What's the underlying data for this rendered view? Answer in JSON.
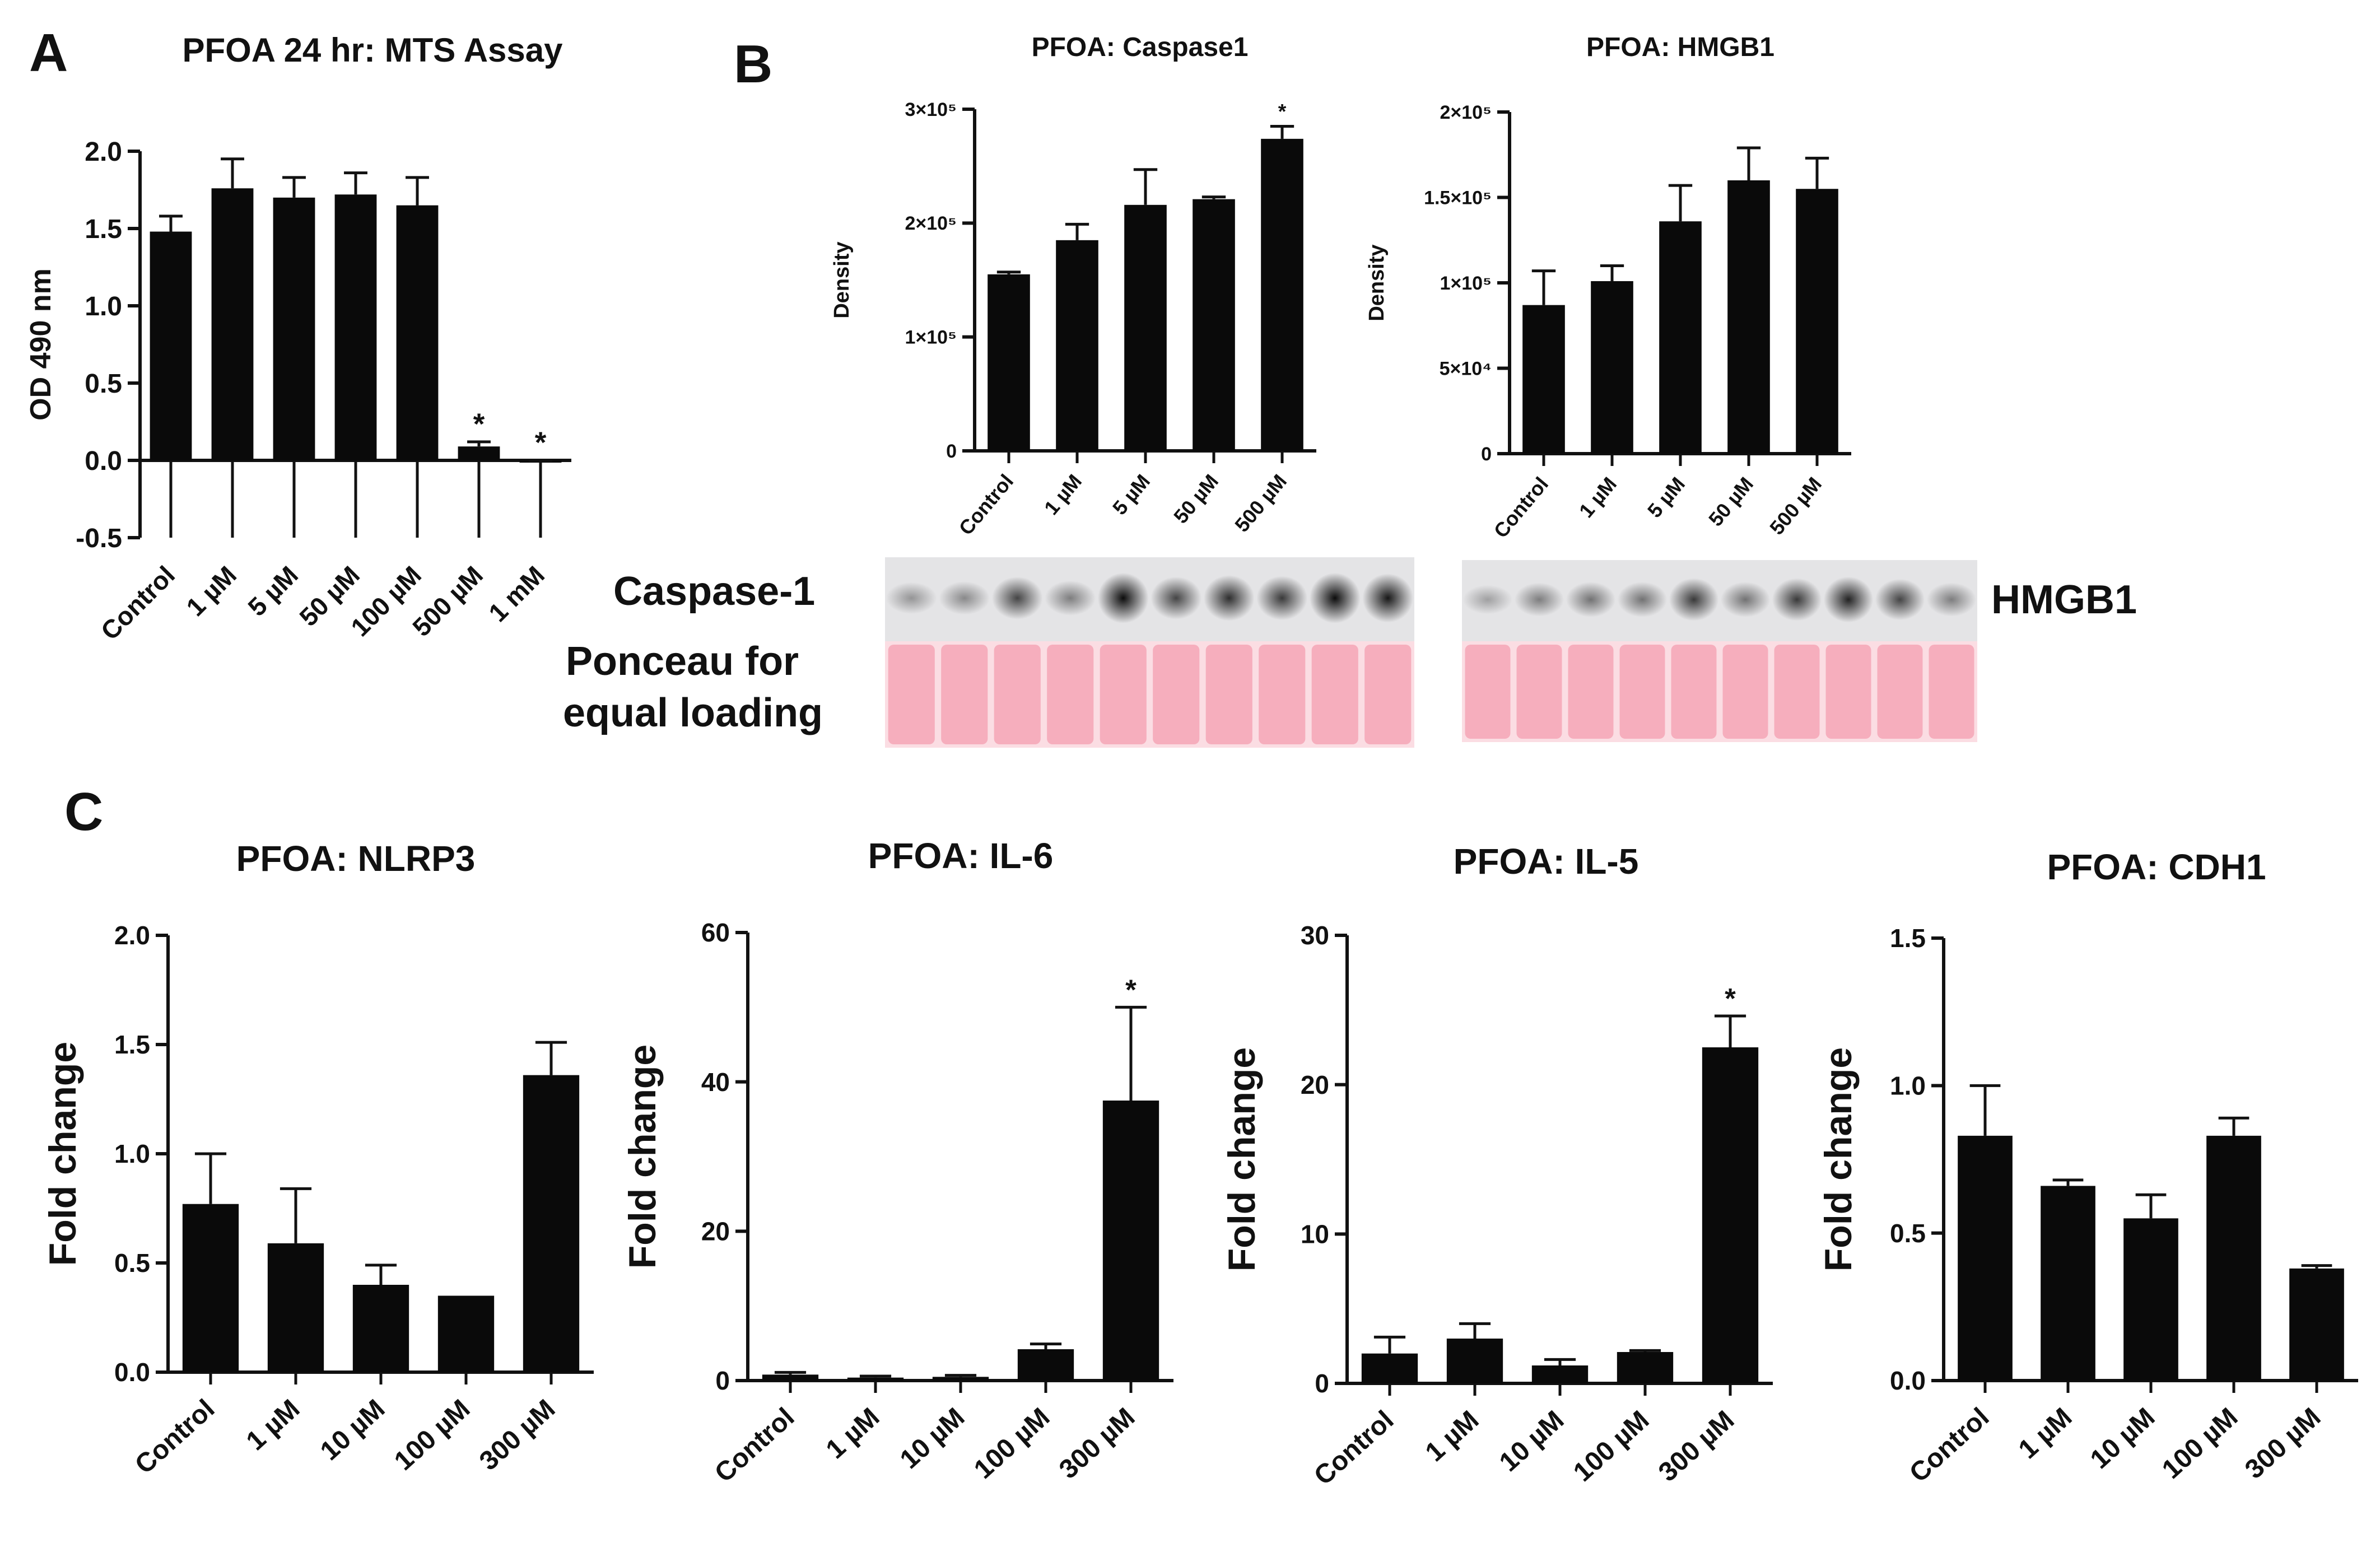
{
  "panel_letters": {
    "a": "A",
    "b": "B",
    "c": "C"
  },
  "blot": {
    "caspase_label": "Caspase-1",
    "ponceau_label_line1": "Ponceau for",
    "ponceau_label_line2": "equal loading",
    "hmgb1_label": "HMGB1",
    "lanes": 10,
    "caspase_band_intensity": [
      0.35,
      0.4,
      0.7,
      0.45,
      0.95,
      0.7,
      0.8,
      0.75,
      0.95,
      0.9
    ],
    "hmgb1_band_intensity": [
      0.3,
      0.45,
      0.5,
      0.5,
      0.75,
      0.5,
      0.75,
      0.85,
      0.7,
      0.45
    ],
    "ponceau_color": "#f4a6b6",
    "ponceau_light": "#fbdde3"
  },
  "chart_data": [
    {
      "id": "A",
      "type": "bar",
      "title": "PFOA 24 hr: MTS Assay",
      "xlabel": "",
      "ylabel": "OD 490 nm",
      "categories": [
        "Control",
        "1 µM",
        "5 µM",
        "50 µM",
        "100 µM",
        "500 µM",
        "1 mM"
      ],
      "values": [
        1.48,
        1.76,
        1.7,
        1.72,
        1.65,
        0.09,
        -0.01
      ],
      "errors": [
        0.1,
        0.19,
        0.13,
        0.14,
        0.18,
        0.03,
        0.01
      ],
      "significant": [
        false,
        false,
        false,
        false,
        false,
        true,
        true
      ],
      "ylim": [
        -0.5,
        2.0
      ],
      "yticks": [
        "-0.5",
        "0.0",
        "0.5",
        "1.0",
        "1.5",
        "2.0"
      ],
      "ytick_values": [
        -0.5,
        0.0,
        0.5,
        1.0,
        1.5,
        2.0
      ]
    },
    {
      "id": "B1",
      "type": "bar",
      "title": "PFOA: Caspase1",
      "xlabel": "",
      "ylabel": "Density",
      "categories": [
        "Control",
        "1 µM",
        "5 µM",
        "50 µM",
        "500 µM"
      ],
      "values": [
        155000,
        185000,
        216000,
        221000,
        274000
      ],
      "errors": [
        2000,
        14000,
        31000,
        2000,
        11000
      ],
      "significant": [
        false,
        false,
        false,
        false,
        true
      ],
      "ylim": [
        0,
        300000
      ],
      "yticks": [
        "0",
        "1×10⁵",
        "2×10⁵",
        "3×10⁵"
      ],
      "ytick_values": [
        0,
        100000,
        200000,
        300000
      ]
    },
    {
      "id": "B2",
      "type": "bar",
      "title": "PFOA: HMGB1",
      "xlabel": "",
      "ylabel": "Density",
      "categories": [
        "Control",
        "1 µM",
        "5 µM",
        "50 µM",
        "500 µM"
      ],
      "values": [
        87000,
        101000,
        136000,
        160000,
        155000
      ],
      "errors": [
        20000,
        9000,
        21000,
        19000,
        18000
      ],
      "significant": [
        false,
        false,
        false,
        false,
        false
      ],
      "ylim": [
        0,
        200000
      ],
      "yticks": [
        "0",
        "5×10⁴",
        "1×10⁵",
        "1.5×10⁵",
        "2×10⁵"
      ],
      "ytick_values": [
        0,
        50000,
        100000,
        150000,
        200000
      ]
    },
    {
      "id": "C1",
      "type": "bar",
      "title": "PFOA: NLRP3",
      "xlabel": "",
      "ylabel": "Fold change",
      "categories": [
        "Control",
        "1 µM",
        "10 µM",
        "100 µM",
        "300 µM"
      ],
      "values": [
        0.77,
        0.59,
        0.4,
        0.35,
        1.36
      ],
      "errors": [
        0.23,
        0.25,
        0.09,
        0.0,
        0.15
      ],
      "significant": [
        false,
        false,
        false,
        false,
        false
      ],
      "ylim": [
        0,
        2.0
      ],
      "yticks": [
        "0.0",
        "0.5",
        "1.0",
        "1.5",
        "2.0"
      ],
      "ytick_values": [
        0,
        0.5,
        1.0,
        1.5,
        2.0
      ]
    },
    {
      "id": "C2",
      "type": "bar",
      "title": "PFOA: IL-6",
      "xlabel": "",
      "ylabel": "Fold change",
      "categories": [
        "Control",
        "1 µM",
        "10 µM",
        "100 µM",
        "300 µM"
      ],
      "values": [
        0.8,
        0.4,
        0.5,
        4.2,
        37.5
      ],
      "errors": [
        0.3,
        0.2,
        0.2,
        0.7,
        12.5
      ],
      "significant": [
        false,
        false,
        false,
        false,
        true
      ],
      "ylim": [
        0,
        60
      ],
      "yticks": [
        "0",
        "20",
        "40",
        "60"
      ],
      "ytick_values": [
        0,
        20,
        40,
        60
      ]
    },
    {
      "id": "C3",
      "type": "bar",
      "title": "PFOA: IL-5",
      "xlabel": "",
      "ylabel": "Fold change",
      "categories": [
        "Control",
        "1 µM",
        "10 µM",
        "100 µM",
        "300 µM"
      ],
      "values": [
        2.0,
        3.0,
        1.2,
        2.1,
        22.5
      ],
      "errors": [
        1.1,
        1.0,
        0.4,
        0.1,
        2.1
      ],
      "significant": [
        false,
        false,
        false,
        false,
        true
      ],
      "ylim": [
        0,
        30
      ],
      "yticks": [
        "0",
        "10",
        "20",
        "30"
      ],
      "ytick_values": [
        0,
        10,
        20,
        30
      ]
    },
    {
      "id": "C4",
      "type": "bar",
      "title": "PFOA: CDH1",
      "xlabel": "",
      "ylabel": "Fold change",
      "categories": [
        "Control",
        "1 µM",
        "10 µM",
        "100 µM",
        "300 µM"
      ],
      "values": [
        0.83,
        0.66,
        0.55,
        0.83,
        0.38
      ],
      "errors": [
        0.17,
        0.02,
        0.08,
        0.06,
        0.01
      ],
      "significant": [
        false,
        false,
        false,
        false,
        false
      ],
      "ylim": [
        0,
        1.5
      ],
      "yticks": [
        "0.0",
        "0.5",
        "1.0",
        "1.5"
      ],
      "ytick_values": [
        0,
        0.5,
        1.0,
        1.5
      ]
    }
  ]
}
